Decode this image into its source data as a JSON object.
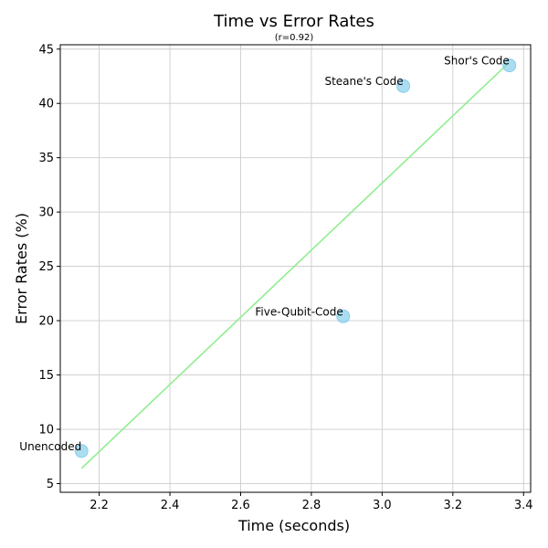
{
  "chart_data": {
    "type": "scatter",
    "title": "Time vs Error Rates",
    "subtitle": "(r=0.92)",
    "xlabel": "Time (seconds)",
    "ylabel": "Error Rates (%)",
    "xlim": [
      2.09,
      3.42
    ],
    "ylim": [
      4.2,
      45.4
    ],
    "xticks": [
      2.2,
      2.4,
      2.6,
      2.8,
      3.0,
      3.2,
      3.4
    ],
    "xtick_labels": [
      "2.2",
      "2.4",
      "2.6",
      "2.8",
      "3.0",
      "3.2",
      "3.4"
    ],
    "yticks": [
      5,
      10,
      15,
      20,
      25,
      30,
      35,
      40,
      45
    ],
    "ytick_labels": [
      "5",
      "10",
      "15",
      "20",
      "25",
      "30",
      "35",
      "40",
      "45"
    ],
    "grid": true,
    "points": [
      {
        "label": "Unencoded",
        "x": 2.15,
        "y": 8.0
      },
      {
        "label": "Five-Qubit-Code",
        "x": 2.89,
        "y": 20.4
      },
      {
        "label": "Steane's Code",
        "x": 3.06,
        "y": 41.6
      },
      {
        "label": "Shor's Code",
        "x": 3.36,
        "y": 43.5
      }
    ],
    "trendline": {
      "x": [
        2.15,
        3.36
      ],
      "y": [
        6.4,
        43.8
      ]
    },
    "colors": {
      "points": "#87ceeb",
      "trendline": "#90ee90"
    }
  }
}
